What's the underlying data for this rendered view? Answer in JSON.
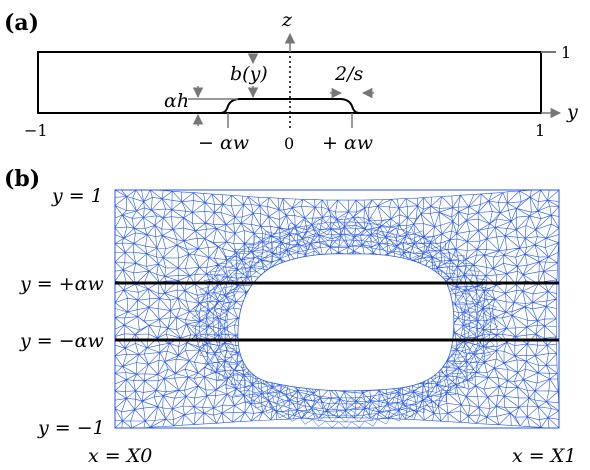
{
  "panel_a": {
    "label": "(a)",
    "axis_z": "z",
    "axis_y": "y",
    "top_tick": "1",
    "left_tick": "−1",
    "right_tick": "1",
    "center_tick": "0",
    "b_label": "b(y)",
    "alpha_h": "αh",
    "slope_label": "2/s",
    "minus_alpha_w": "− αw",
    "plus_alpha_w": "+ αw"
  },
  "panel_b": {
    "label": "(b)",
    "y_top": "y = 1",
    "y_plus": "y = +αw",
    "y_minus": "y = −αw",
    "y_bottom": "y = −1",
    "x_left": "x = X0",
    "x_right": "x = X1",
    "mesh_color": "#2255ee"
  }
}
